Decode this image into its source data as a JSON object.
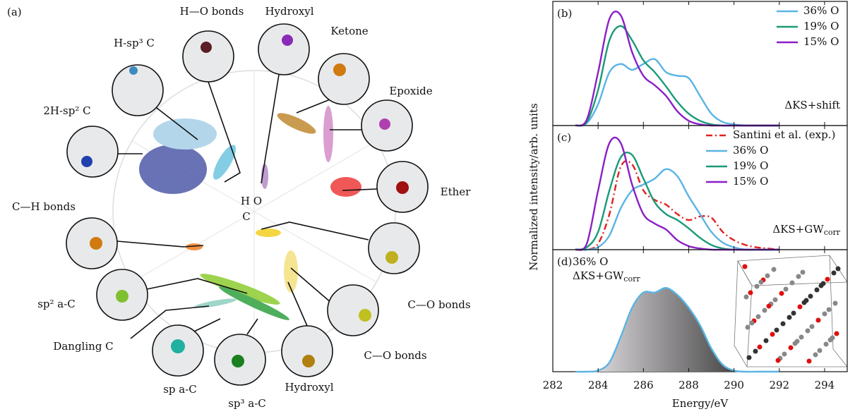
{
  "diagram": {
    "panel_label": "(a)",
    "center_top": "H O",
    "center_bottom": "C",
    "labels": [
      "H—O bonds",
      "Hydroxyl",
      "Ketone",
      "H-sp³ C",
      "Epoxide",
      "2H-sp² C",
      "Ether",
      "C—H bonds",
      "C—O bonds",
      "sp² a-C",
      "Dangling C",
      "C—O bonds",
      "Hydroxyl",
      "sp a-C",
      "sp³ a-C"
    ]
  },
  "chart_data": [
    {
      "type": "line",
      "panel_label": "(b)",
      "ylabel": "Normalized intensity/arb. units",
      "annotation": "ΔKS+shift",
      "legend": "top-right",
      "xlim": [
        282,
        295
      ],
      "ylim": [
        0,
        1
      ],
      "x": [
        283,
        283.5,
        284,
        284.5,
        285,
        285.5,
        286,
        286.5,
        287,
        287.5,
        288,
        288.5,
        289,
        289.5,
        290,
        290.5,
        291,
        291.5,
        292
      ],
      "series": [
        {
          "name": "36% O",
          "color": "#5ab4e5",
          "values": [
            0,
            0.02,
            0.18,
            0.45,
            0.52,
            0.47,
            0.52,
            0.56,
            0.45,
            0.42,
            0.4,
            0.25,
            0.1,
            0.03,
            0.01,
            0,
            0,
            0,
            0
          ]
        },
        {
          "name": "19% O",
          "color": "#1a9a78",
          "values": [
            0,
            0.03,
            0.3,
            0.72,
            0.84,
            0.72,
            0.55,
            0.45,
            0.33,
            0.2,
            0.1,
            0.04,
            0.01,
            0,
            0,
            0,
            0,
            0,
            0
          ]
        },
        {
          "name": "15% O",
          "color": "#8a1fc6",
          "values": [
            0,
            0.05,
            0.45,
            0.9,
            0.93,
            0.62,
            0.42,
            0.34,
            0.25,
            0.12,
            0.04,
            0.01,
            0,
            0,
            0,
            0,
            0,
            0,
            0
          ]
        }
      ]
    },
    {
      "type": "line",
      "panel_label": "(c)",
      "annotation": "ΔKS+GW",
      "annotation_sub": "corr",
      "legend": "top-right",
      "xlim": [
        282,
        295
      ],
      "ylim": [
        0,
        1
      ],
      "x": [
        283,
        283.5,
        284,
        284.5,
        285,
        285.5,
        286,
        286.5,
        287,
        287.5,
        288,
        288.5,
        289,
        289.5,
        290,
        290.5,
        291,
        291.5,
        292
      ],
      "series": [
        {
          "name": "Santini et al. (exp.)",
          "color": "#e02020",
          "dash": true,
          "values": [
            0,
            0,
            0.05,
            0.3,
            0.7,
            0.72,
            0.5,
            0.42,
            0.38,
            0.3,
            0.25,
            0.28,
            0.27,
            0.15,
            0.08,
            0.04,
            0.02,
            0.01,
            0
          ]
        },
        {
          "name": "36% O",
          "color": "#5ab4e5",
          "values": [
            0,
            0,
            0.02,
            0.12,
            0.35,
            0.5,
            0.55,
            0.6,
            0.68,
            0.62,
            0.45,
            0.3,
            0.15,
            0.06,
            0.02,
            0,
            0,
            0,
            0
          ]
        },
        {
          "name": "19% O",
          "color": "#1a9a78",
          "values": [
            0,
            0.02,
            0.15,
            0.5,
            0.78,
            0.8,
            0.6,
            0.4,
            0.3,
            0.25,
            0.18,
            0.1,
            0.04,
            0.01,
            0,
            0,
            0,
            0,
            0
          ]
        },
        {
          "name": "15% O",
          "color": "#8a1fc6",
          "values": [
            0,
            0.05,
            0.5,
            0.9,
            0.9,
            0.55,
            0.3,
            0.22,
            0.17,
            0.08,
            0.03,
            0.01,
            0,
            0,
            0,
            0,
            0,
            0,
            0
          ]
        }
      ]
    },
    {
      "type": "area",
      "panel_label": "(d)",
      "annotation": "36% O",
      "annotation2": "ΔKS+GW",
      "annotation2_sub": "corr",
      "xlabel": "Energy/eV",
      "xlim": [
        282,
        295
      ],
      "ylim": [
        0,
        1
      ],
      "xticks": [
        282,
        284,
        286,
        288,
        290,
        292,
        294
      ],
      "x": [
        283,
        283.5,
        284,
        284.5,
        285,
        285.5,
        286,
        286.5,
        287,
        287.5,
        288,
        288.5,
        289,
        289.5,
        290,
        290.5,
        291,
        291.5,
        292
      ],
      "series": [
        {
          "color": "#5ab4e5",
          "values": [
            0,
            0,
            0.01,
            0.08,
            0.3,
            0.55,
            0.68,
            0.68,
            0.72,
            0.66,
            0.55,
            0.4,
            0.2,
            0.06,
            0.01,
            0,
            0,
            0,
            0
          ]
        }
      ]
    }
  ]
}
